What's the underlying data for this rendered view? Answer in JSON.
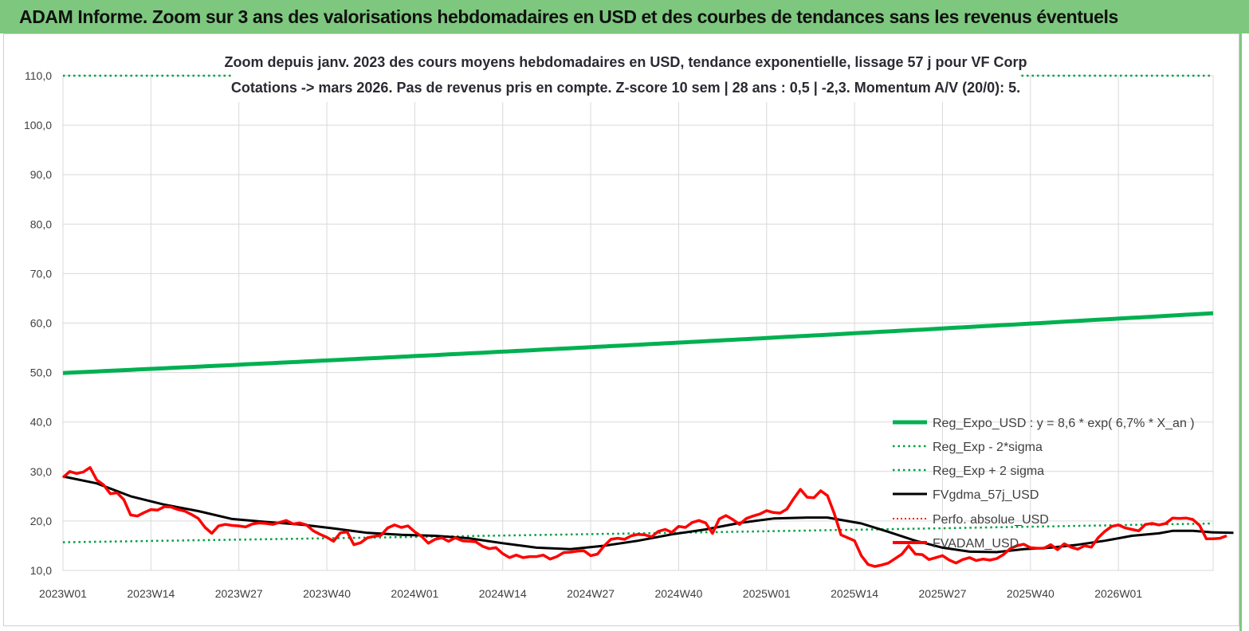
{
  "header": {
    "title": "ADAM Informe. Zoom sur 3 ans des valorisations hebdomadaires en USD et des courbes de tendances sans les revenus éventuels"
  },
  "colors": {
    "header_bg": "#7dc87e",
    "reg_expo": "#00b050",
    "sigma": "#00a040",
    "gdma": "#000000",
    "perfo": "#ff0000",
    "fvadam": "#ff0000"
  },
  "chart_data": {
    "type": "line",
    "title_line1": "Zoom depuis janv. 2023 des cours moyens hebdomadaires en USD, tendance exponentielle, lissage 57 j pour VF Corp",
    "title_line2": "Cotations -> mars 2026. Pas de revenus pris en compte. Z-score 10 sem | 28 ans : 0,5 | -2,3. Momentum A/V (20/0): 5.",
    "ylim": [
      10,
      110
    ],
    "yticks": [
      "10,0",
      "20,0",
      "30,0",
      "40,0",
      "50,0",
      "60,0",
      "70,0",
      "80,0",
      "90,0",
      "100,0",
      "110,0"
    ],
    "x_tick_labels": [
      "2023W01",
      "2023W14",
      "2023W27",
      "2023W40",
      "2024W01",
      "2024W14",
      "2024W27",
      "2024W40",
      "2025W01",
      "2025W14",
      "2025W27",
      "2025W40",
      "2026W01"
    ],
    "x_tick_indexes": [
      0,
      13,
      26,
      39,
      52,
      65,
      78,
      91,
      104,
      117,
      130,
      143,
      156
    ],
    "n_weeks": 170,
    "grid": true,
    "legend_placement": "bottom-right",
    "series": [
      {
        "name": "Reg_Expo_USD : y = 8,6 * exp( 6,7% * X_an )",
        "style": "thick-solid",
        "color": "#00b050",
        "start": 49.9,
        "end": 62.0
      },
      {
        "name": "Reg_Exp - 2*sigma",
        "style": "dotted",
        "color": "#00a040",
        "start": 15.7,
        "end": 19.5
      },
      {
        "name": "Reg_Exp + 2 sigma",
        "style": "dotted",
        "color": "#00a040",
        "value": 110
      },
      {
        "name": "FVgdma_57j_USD",
        "style": "solid",
        "color": "#000000",
        "points": [
          [
            0,
            29.0
          ],
          [
            5,
            27.6
          ],
          [
            10,
            25.0
          ],
          [
            15,
            23.3
          ],
          [
            20,
            22.0
          ],
          [
            25,
            20.4
          ],
          [
            30,
            19.8
          ],
          [
            35,
            19.3
          ],
          [
            40,
            18.5
          ],
          [
            45,
            17.6
          ],
          [
            50,
            17.2
          ],
          [
            55,
            17.0
          ],
          [
            60,
            16.5
          ],
          [
            65,
            15.5
          ],
          [
            70,
            14.6
          ],
          [
            75,
            14.3
          ],
          [
            80,
            15.0
          ],
          [
            85,
            16.0
          ],
          [
            90,
            17.3
          ],
          [
            95,
            18.3
          ],
          [
            100,
            19.6
          ],
          [
            105,
            20.5
          ],
          [
            110,
            20.7
          ],
          [
            113,
            20.7
          ],
          [
            118,
            19.5
          ],
          [
            122,
            17.8
          ],
          [
            126,
            16.0
          ],
          [
            130,
            14.6
          ],
          [
            134,
            13.8
          ],
          [
            138,
            13.7
          ],
          [
            142,
            14.3
          ],
          [
            146,
            14.6
          ],
          [
            150,
            15.2
          ],
          [
            154,
            16.0
          ],
          [
            158,
            17.0
          ],
          [
            162,
            17.5
          ],
          [
            164,
            18.0
          ],
          [
            167,
            18.0
          ],
          [
            170,
            17.7
          ],
          [
            173,
            17.6
          ]
        ]
      },
      {
        "name": "Perfo. absolue_USD",
        "style": "dotted",
        "color": "#ff0000"
      },
      {
        "name": "FVADAM_USD",
        "style": "thick-solid",
        "color": "#ff0000",
        "points": [
          [
            0,
            28.8
          ],
          [
            1,
            30.0
          ],
          [
            2,
            29.6
          ],
          [
            3,
            29.9
          ],
          [
            4,
            30.8
          ],
          [
            5,
            28.3
          ],
          [
            6,
            27.3
          ],
          [
            7,
            25.5
          ],
          [
            8,
            25.7
          ],
          [
            9,
            24.3
          ],
          [
            10,
            21.2
          ],
          [
            11,
            21.0
          ],
          [
            12,
            21.7
          ],
          [
            13,
            22.3
          ],
          [
            14,
            22.2
          ],
          [
            15,
            22.9
          ],
          [
            16,
            22.8
          ],
          [
            17,
            22.3
          ],
          [
            18,
            22.0
          ],
          [
            19,
            21.3
          ],
          [
            20,
            20.5
          ],
          [
            21,
            18.7
          ],
          [
            22,
            17.5
          ],
          [
            23,
            19.0
          ],
          [
            24,
            19.3
          ],
          [
            25,
            19.1
          ],
          [
            26,
            19.0
          ],
          [
            27,
            18.8
          ],
          [
            28,
            19.4
          ],
          [
            29,
            19.6
          ],
          [
            30,
            19.5
          ],
          [
            31,
            19.3
          ],
          [
            32,
            19.7
          ],
          [
            33,
            20.1
          ],
          [
            34,
            19.4
          ],
          [
            35,
            19.6
          ],
          [
            36,
            19.2
          ],
          [
            37,
            18.0
          ],
          [
            38,
            17.3
          ],
          [
            39,
            16.7
          ],
          [
            40,
            15.9
          ],
          [
            41,
            17.6
          ],
          [
            42,
            17.8
          ],
          [
            43,
            15.2
          ],
          [
            44,
            15.6
          ],
          [
            45,
            16.6
          ],
          [
            46,
            16.9
          ],
          [
            47,
            17.1
          ],
          [
            48,
            18.6
          ],
          [
            49,
            19.2
          ],
          [
            50,
            18.7
          ],
          [
            51,
            19.0
          ],
          [
            52,
            17.8
          ],
          [
            53,
            16.9
          ],
          [
            54,
            15.5
          ],
          [
            55,
            16.3
          ],
          [
            56,
            16.6
          ],
          [
            57,
            15.9
          ],
          [
            58,
            16.6
          ],
          [
            59,
            16.0
          ],
          [
            60,
            15.9
          ],
          [
            61,
            15.8
          ],
          [
            62,
            14.9
          ],
          [
            63,
            14.4
          ],
          [
            64,
            14.6
          ],
          [
            65,
            13.4
          ],
          [
            66,
            12.6
          ],
          [
            67,
            13.1
          ],
          [
            68,
            12.6
          ],
          [
            69,
            12.8
          ],
          [
            70,
            12.8
          ],
          [
            71,
            13.1
          ],
          [
            72,
            12.3
          ],
          [
            73,
            12.8
          ],
          [
            74,
            13.6
          ],
          [
            75,
            13.7
          ],
          [
            76,
            13.9
          ],
          [
            77,
            14.0
          ],
          [
            78,
            13.0
          ],
          [
            79,
            13.3
          ],
          [
            80,
            15.0
          ],
          [
            81,
            16.3
          ],
          [
            82,
            16.5
          ],
          [
            83,
            16.3
          ],
          [
            84,
            17.0
          ],
          [
            85,
            17.3
          ],
          [
            86,
            17.2
          ],
          [
            87,
            16.8
          ],
          [
            88,
            17.9
          ],
          [
            89,
            18.3
          ],
          [
            90,
            17.7
          ],
          [
            91,
            18.9
          ],
          [
            92,
            18.7
          ],
          [
            93,
            19.7
          ],
          [
            94,
            20.1
          ],
          [
            95,
            19.6
          ],
          [
            96,
            17.5
          ],
          [
            97,
            20.4
          ],
          [
            98,
            21.1
          ],
          [
            99,
            20.3
          ],
          [
            100,
            19.3
          ],
          [
            101,
            20.5
          ],
          [
            102,
            21.0
          ],
          [
            103,
            21.4
          ],
          [
            104,
            22.1
          ],
          [
            105,
            21.7
          ],
          [
            106,
            21.6
          ],
          [
            107,
            22.4
          ],
          [
            108,
            24.5
          ],
          [
            109,
            26.4
          ],
          [
            110,
            24.8
          ],
          [
            111,
            24.7
          ],
          [
            112,
            26.1
          ],
          [
            113,
            25.1
          ],
          [
            114,
            21.5
          ],
          [
            115,
            17.2
          ],
          [
            116,
            16.6
          ],
          [
            117,
            16.0
          ],
          [
            118,
            13.0
          ],
          [
            119,
            11.2
          ],
          [
            120,
            10.8
          ],
          [
            121,
            11.1
          ],
          [
            122,
            11.5
          ],
          [
            123,
            12.4
          ],
          [
            124,
            13.3
          ],
          [
            125,
            15.0
          ],
          [
            126,
            13.3
          ],
          [
            127,
            13.2
          ],
          [
            128,
            12.2
          ],
          [
            129,
            12.6
          ],
          [
            130,
            13.0
          ],
          [
            131,
            12.1
          ],
          [
            132,
            11.5
          ],
          [
            133,
            12.2
          ],
          [
            134,
            12.6
          ],
          [
            135,
            12.0
          ],
          [
            136,
            12.3
          ],
          [
            137,
            12.1
          ],
          [
            138,
            12.4
          ],
          [
            139,
            13.2
          ],
          [
            140,
            14.4
          ],
          [
            141,
            15.0
          ],
          [
            142,
            15.3
          ],
          [
            143,
            14.6
          ],
          [
            144,
            14.5
          ],
          [
            145,
            14.5
          ],
          [
            146,
            15.2
          ],
          [
            147,
            14.2
          ],
          [
            148,
            15.4
          ],
          [
            149,
            14.7
          ],
          [
            150,
            14.3
          ],
          [
            151,
            15.0
          ],
          [
            152,
            14.7
          ],
          [
            153,
            16.6
          ],
          [
            154,
            17.9
          ],
          [
            155,
            18.9
          ],
          [
            156,
            19.2
          ],
          [
            157,
            18.6
          ],
          [
            158,
            18.3
          ],
          [
            159,
            18.0
          ],
          [
            160,
            19.3
          ],
          [
            161,
            19.5
          ],
          [
            162,
            19.2
          ],
          [
            163,
            19.5
          ],
          [
            164,
            20.6
          ],
          [
            165,
            20.5
          ],
          [
            166,
            20.6
          ],
          [
            167,
            20.3
          ],
          [
            168,
            19.1
          ],
          [
            169,
            16.4
          ],
          [
            170,
            16.4
          ],
          [
            171,
            16.5
          ],
          [
            172,
            17.0
          ]
        ]
      }
    ]
  }
}
